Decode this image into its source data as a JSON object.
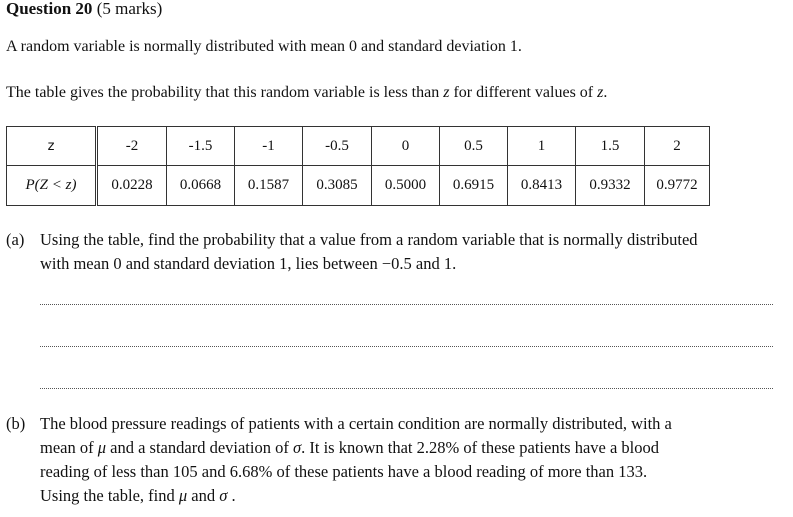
{
  "question": {
    "label": "Question 20",
    "marks": "(5 marks)"
  },
  "intro": "A random variable is normally distributed with mean 0 and standard deviation 1.",
  "table_intro_pre": "The table gives the probability that this random variable is less than ",
  "table_intro_var": "z",
  "table_intro_post": " for different values of ",
  "table_intro_var2": "z",
  "table_intro_end": ".",
  "table": {
    "row1_label": "z",
    "row2_label": "P(Z < z)",
    "z_values": [
      "-2",
      "-1.5",
      "-1",
      "-0.5",
      "0",
      "0.5",
      "1",
      "1.5",
      "2"
    ],
    "p_values": [
      "0.0228",
      "0.0668",
      "0.1587",
      "0.3085",
      "0.5000",
      "0.6915",
      "0.8413",
      "0.9332",
      "0.9772"
    ]
  },
  "part_a": {
    "tag": "(a)",
    "line1": "Using the table, find the probability that a value from a random variable that is normally distributed",
    "line2": "with mean 0 and standard deviation 1, lies between −0.5 and 1."
  },
  "part_b": {
    "tag": "(b)",
    "line1": "The blood pressure readings of patients with a certain condition are normally distributed, with a",
    "line2_pre": "mean of ",
    "mu": "μ",
    "line2_mid": " and a standard deviation of ",
    "sigma": "σ",
    "line2_post": ". It is known that 2.28% of these patients have a blood",
    "line3": "reading of less than 105 and 6.68% of these patients have a blood reading of more than 133.",
    "line4_pre": "Using the table, find ",
    "line4_and": " and ",
    "line4_end": " ."
  }
}
